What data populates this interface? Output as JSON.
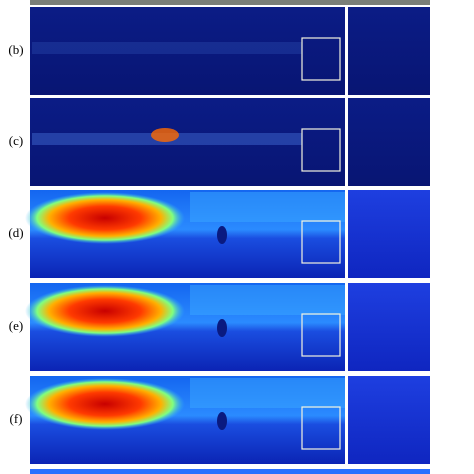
{
  "panels": [
    {
      "label": "(b)"
    },
    {
      "label": "(c)"
    },
    {
      "label": "(d)"
    },
    {
      "label": "(e)"
    },
    {
      "label": "(f)"
    }
  ]
}
